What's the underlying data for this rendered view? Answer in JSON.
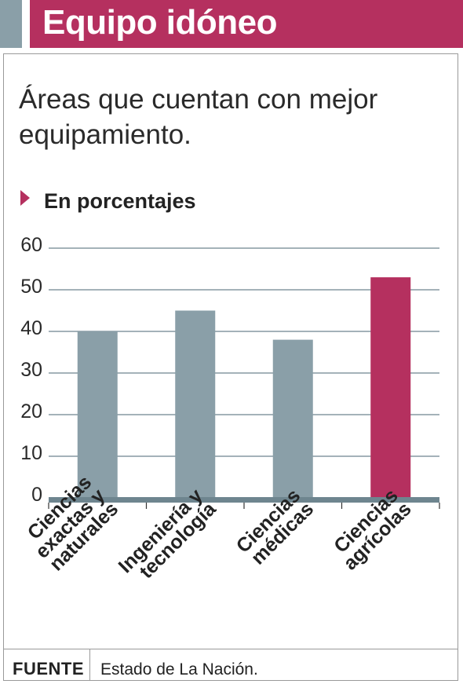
{
  "header": {
    "title": "Equipo idóneo"
  },
  "subtitle": "Áreas que cuentan con mejor equipamiento.",
  "units_label": "En porcentajes",
  "footer": {
    "source_label": "FUENTE",
    "source_text": "Estado de La Nación."
  },
  "colors": {
    "accent": "#b5305f",
    "neutral": "#8a9fa8",
    "grid": "#6e858f"
  },
  "chart_data": {
    "type": "bar",
    "categories": [
      [
        "Ciencias",
        "exactas y",
        "naturales"
      ],
      [
        "Ingeniería y",
        "tecnología"
      ],
      [
        "Ciencias",
        "médicas"
      ],
      [
        "Ciencias",
        "agrícolas"
      ]
    ],
    "values": [
      40,
      45,
      38,
      53
    ],
    "highlight_index": 3,
    "ylim": [
      0,
      60
    ],
    "yticks": [
      "0",
      "10",
      "20",
      "30",
      "40",
      "50",
      "60"
    ],
    "grid": true,
    "xlabel": "",
    "ylabel": ""
  }
}
